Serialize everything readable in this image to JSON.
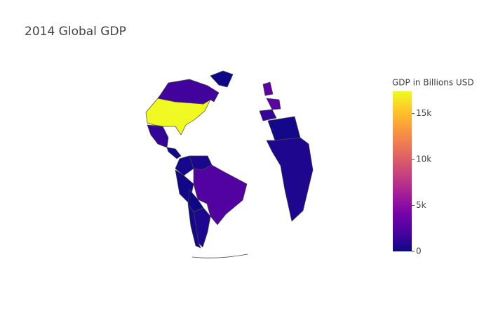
{
  "chart_data": {
    "type": "choropleth",
    "title": "2014 Global GDP",
    "projection": "orthographic",
    "values": [
      17420,
      1790,
      2,
      1300,
      60,
      380,
      480,
      200,
      2450,
      33,
      540,
      260,
      1380,
      2830,
      3000,
      210,
      570
    ],
    "colorbar_title": "GDP in Billions USD",
    "colorscale": [
      "#0d0887",
      "#46039f",
      "#7201a8",
      "#9c179e",
      "#bd3786",
      "#d8576b",
      "#ed7953",
      "#fb9f3a",
      "#fdca26",
      "#f0f921"
    ],
    "zlim": [
      0,
      17420
    ],
    "zticks": [
      0,
      {
        "value": 5000,
        "label": "5k"
      },
      {
        "value": 10000,
        "label": "10k"
      },
      {
        "value": 15000,
        "label": "15k"
      }
    ],
    "border_color": "#444444"
  }
}
